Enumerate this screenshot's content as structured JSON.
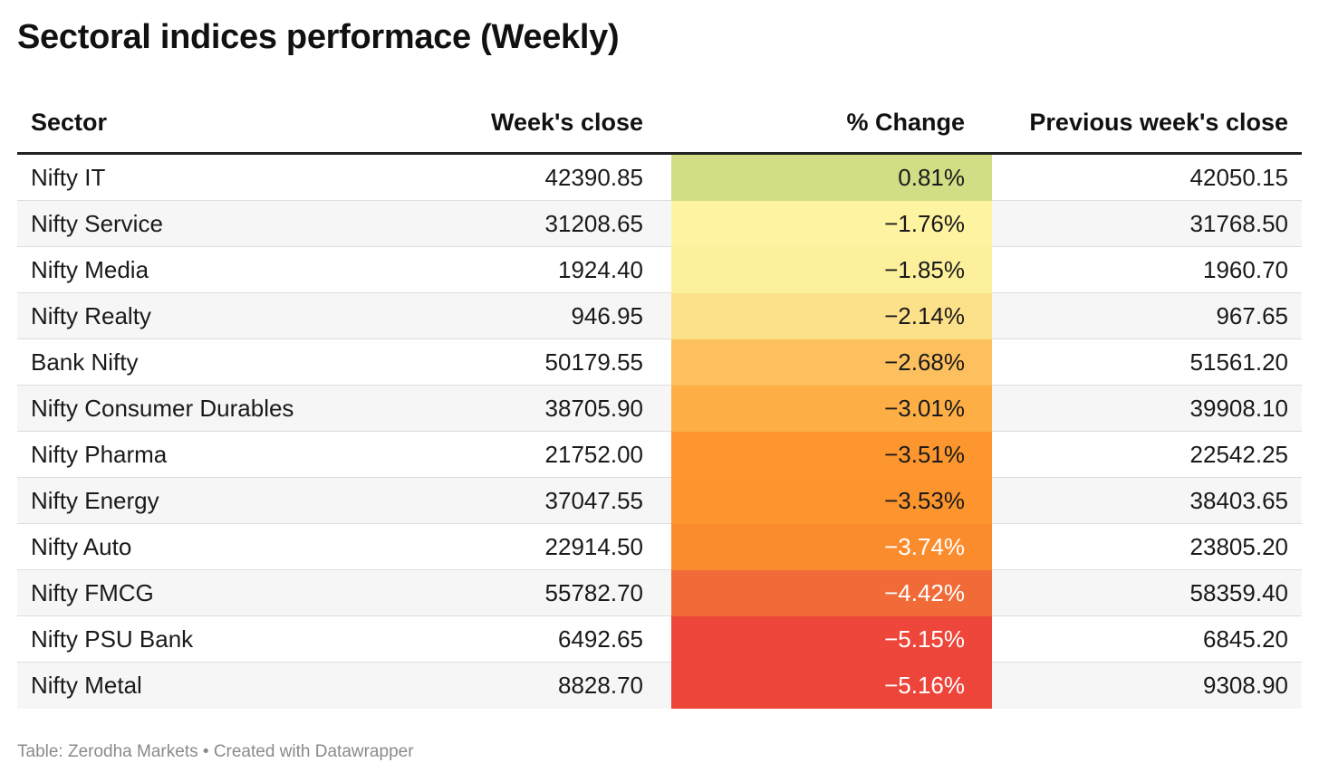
{
  "title": "Sectoral indices performace (Weekly)",
  "footer": {
    "source": "Table: Zerodha Markets",
    "separator": "•",
    "credit": "Created with Datawrapper"
  },
  "chart_data": {
    "type": "table",
    "title": "Sectoral indices performace (Weekly)",
    "columns": [
      "Sector",
      "Week's close",
      "% Change",
      "Previous week's close"
    ],
    "rows": [
      {
        "sector": "Nifty IT",
        "close": "42390.85",
        "change": "0.81%",
        "prev": "42050.15",
        "change_value": 0.81,
        "color": "#d2dd86",
        "text_color": "#1a1a1a"
      },
      {
        "sector": "Nifty Service",
        "close": "31208.65",
        "change": "−1.76%",
        "prev": "31768.50",
        "change_value": -1.76,
        "color": "#fdf3a1",
        "text_color": "#1a1a1a"
      },
      {
        "sector": "Nifty Media",
        "close": "1924.40",
        "change": "−1.85%",
        "prev": "1960.70",
        "change_value": -1.85,
        "color": "#fdf09c",
        "text_color": "#1a1a1a"
      },
      {
        "sector": "Nifty Realty",
        "close": "946.95",
        "change": "−2.14%",
        "prev": "967.65",
        "change_value": -2.14,
        "color": "#fde08a",
        "text_color": "#1a1a1a"
      },
      {
        "sector": "Bank Nifty",
        "close": "50179.55",
        "change": "−2.68%",
        "prev": "51561.20",
        "change_value": -2.68,
        "color": "#fdc05e",
        "text_color": "#1a1a1a"
      },
      {
        "sector": "Nifty Consumer Durables",
        "close": "38705.90",
        "change": "−3.01%",
        "prev": "39908.10",
        "change_value": -3.01,
        "color": "#fdae45",
        "text_color": "#1a1a1a"
      },
      {
        "sector": "Nifty Pharma",
        "close": "21752.00",
        "change": "−3.51%",
        "prev": "22542.25",
        "change_value": -3.51,
        "color": "#fd962e",
        "text_color": "#1a1a1a"
      },
      {
        "sector": "Nifty Energy",
        "close": "37047.55",
        "change": "−3.53%",
        "prev": "38403.65",
        "change_value": -3.53,
        "color": "#fd952e",
        "text_color": "#1a1a1a"
      },
      {
        "sector": "Nifty Auto",
        "close": "22914.50",
        "change": "−3.74%",
        "prev": "23805.20",
        "change_value": -3.74,
        "color": "#fb8c2e",
        "text_color": "#ffffff"
      },
      {
        "sector": "Nifty FMCG",
        "close": "55782.70",
        "change": "−4.42%",
        "prev": "58359.40",
        "change_value": -4.42,
        "color": "#f16b38",
        "text_color": "#ffffff"
      },
      {
        "sector": "Nifty PSU Bank",
        "close": "6492.65",
        "change": "−5.15%",
        "prev": "6845.20",
        "change_value": -5.15,
        "color": "#ee463a",
        "text_color": "#ffffff"
      },
      {
        "sector": "Nifty Metal",
        "close": "8828.70",
        "change": "−5.16%",
        "prev": "9308.90",
        "change_value": -5.16,
        "color": "#ee453a",
        "text_color": "#ffffff"
      }
    ]
  }
}
